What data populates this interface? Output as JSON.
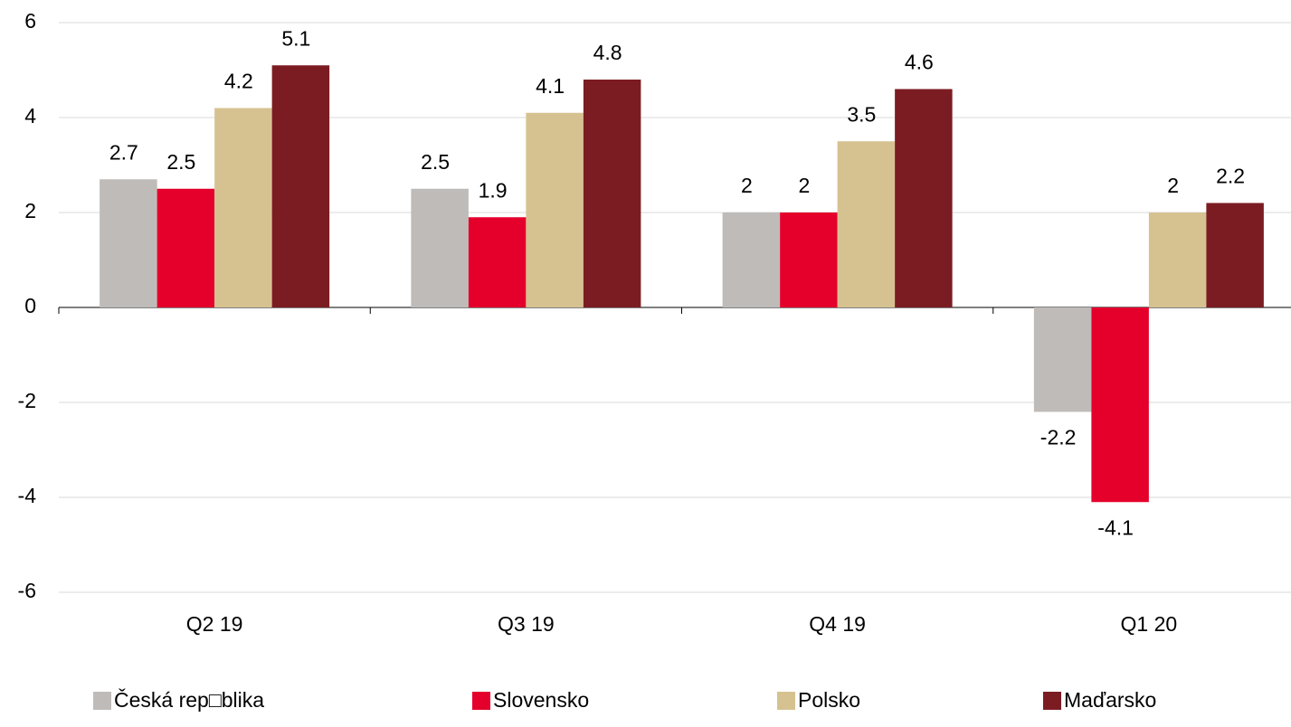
{
  "chart_data": {
    "type": "bar",
    "categories": [
      "Q2 19",
      "Q3 19",
      "Q4 19",
      "Q1 20"
    ],
    "series": [
      {
        "name": "Česká rep□blika",
        "color": "#bfbbb8",
        "values": [
          2.7,
          2.5,
          2.0,
          -2.2
        ]
      },
      {
        "name": "Slovensko",
        "color": "#e4002b",
        "values": [
          2.5,
          1.9,
          2.0,
          -4.1
        ]
      },
      {
        "name": "Polsko",
        "color": "#d6c291",
        "values": [
          4.2,
          4.1,
          3.5,
          2.0
        ]
      },
      {
        "name": "Maďarsko",
        "color": "#7b1c22",
        "values": [
          5.1,
          4.8,
          4.6,
          2.2
        ]
      }
    ],
    "ylim": [
      -6,
      6
    ],
    "yticks": [
      -6,
      -4,
      -2,
      0,
      2,
      4,
      6
    ],
    "grid": true,
    "legend": "bottom"
  }
}
